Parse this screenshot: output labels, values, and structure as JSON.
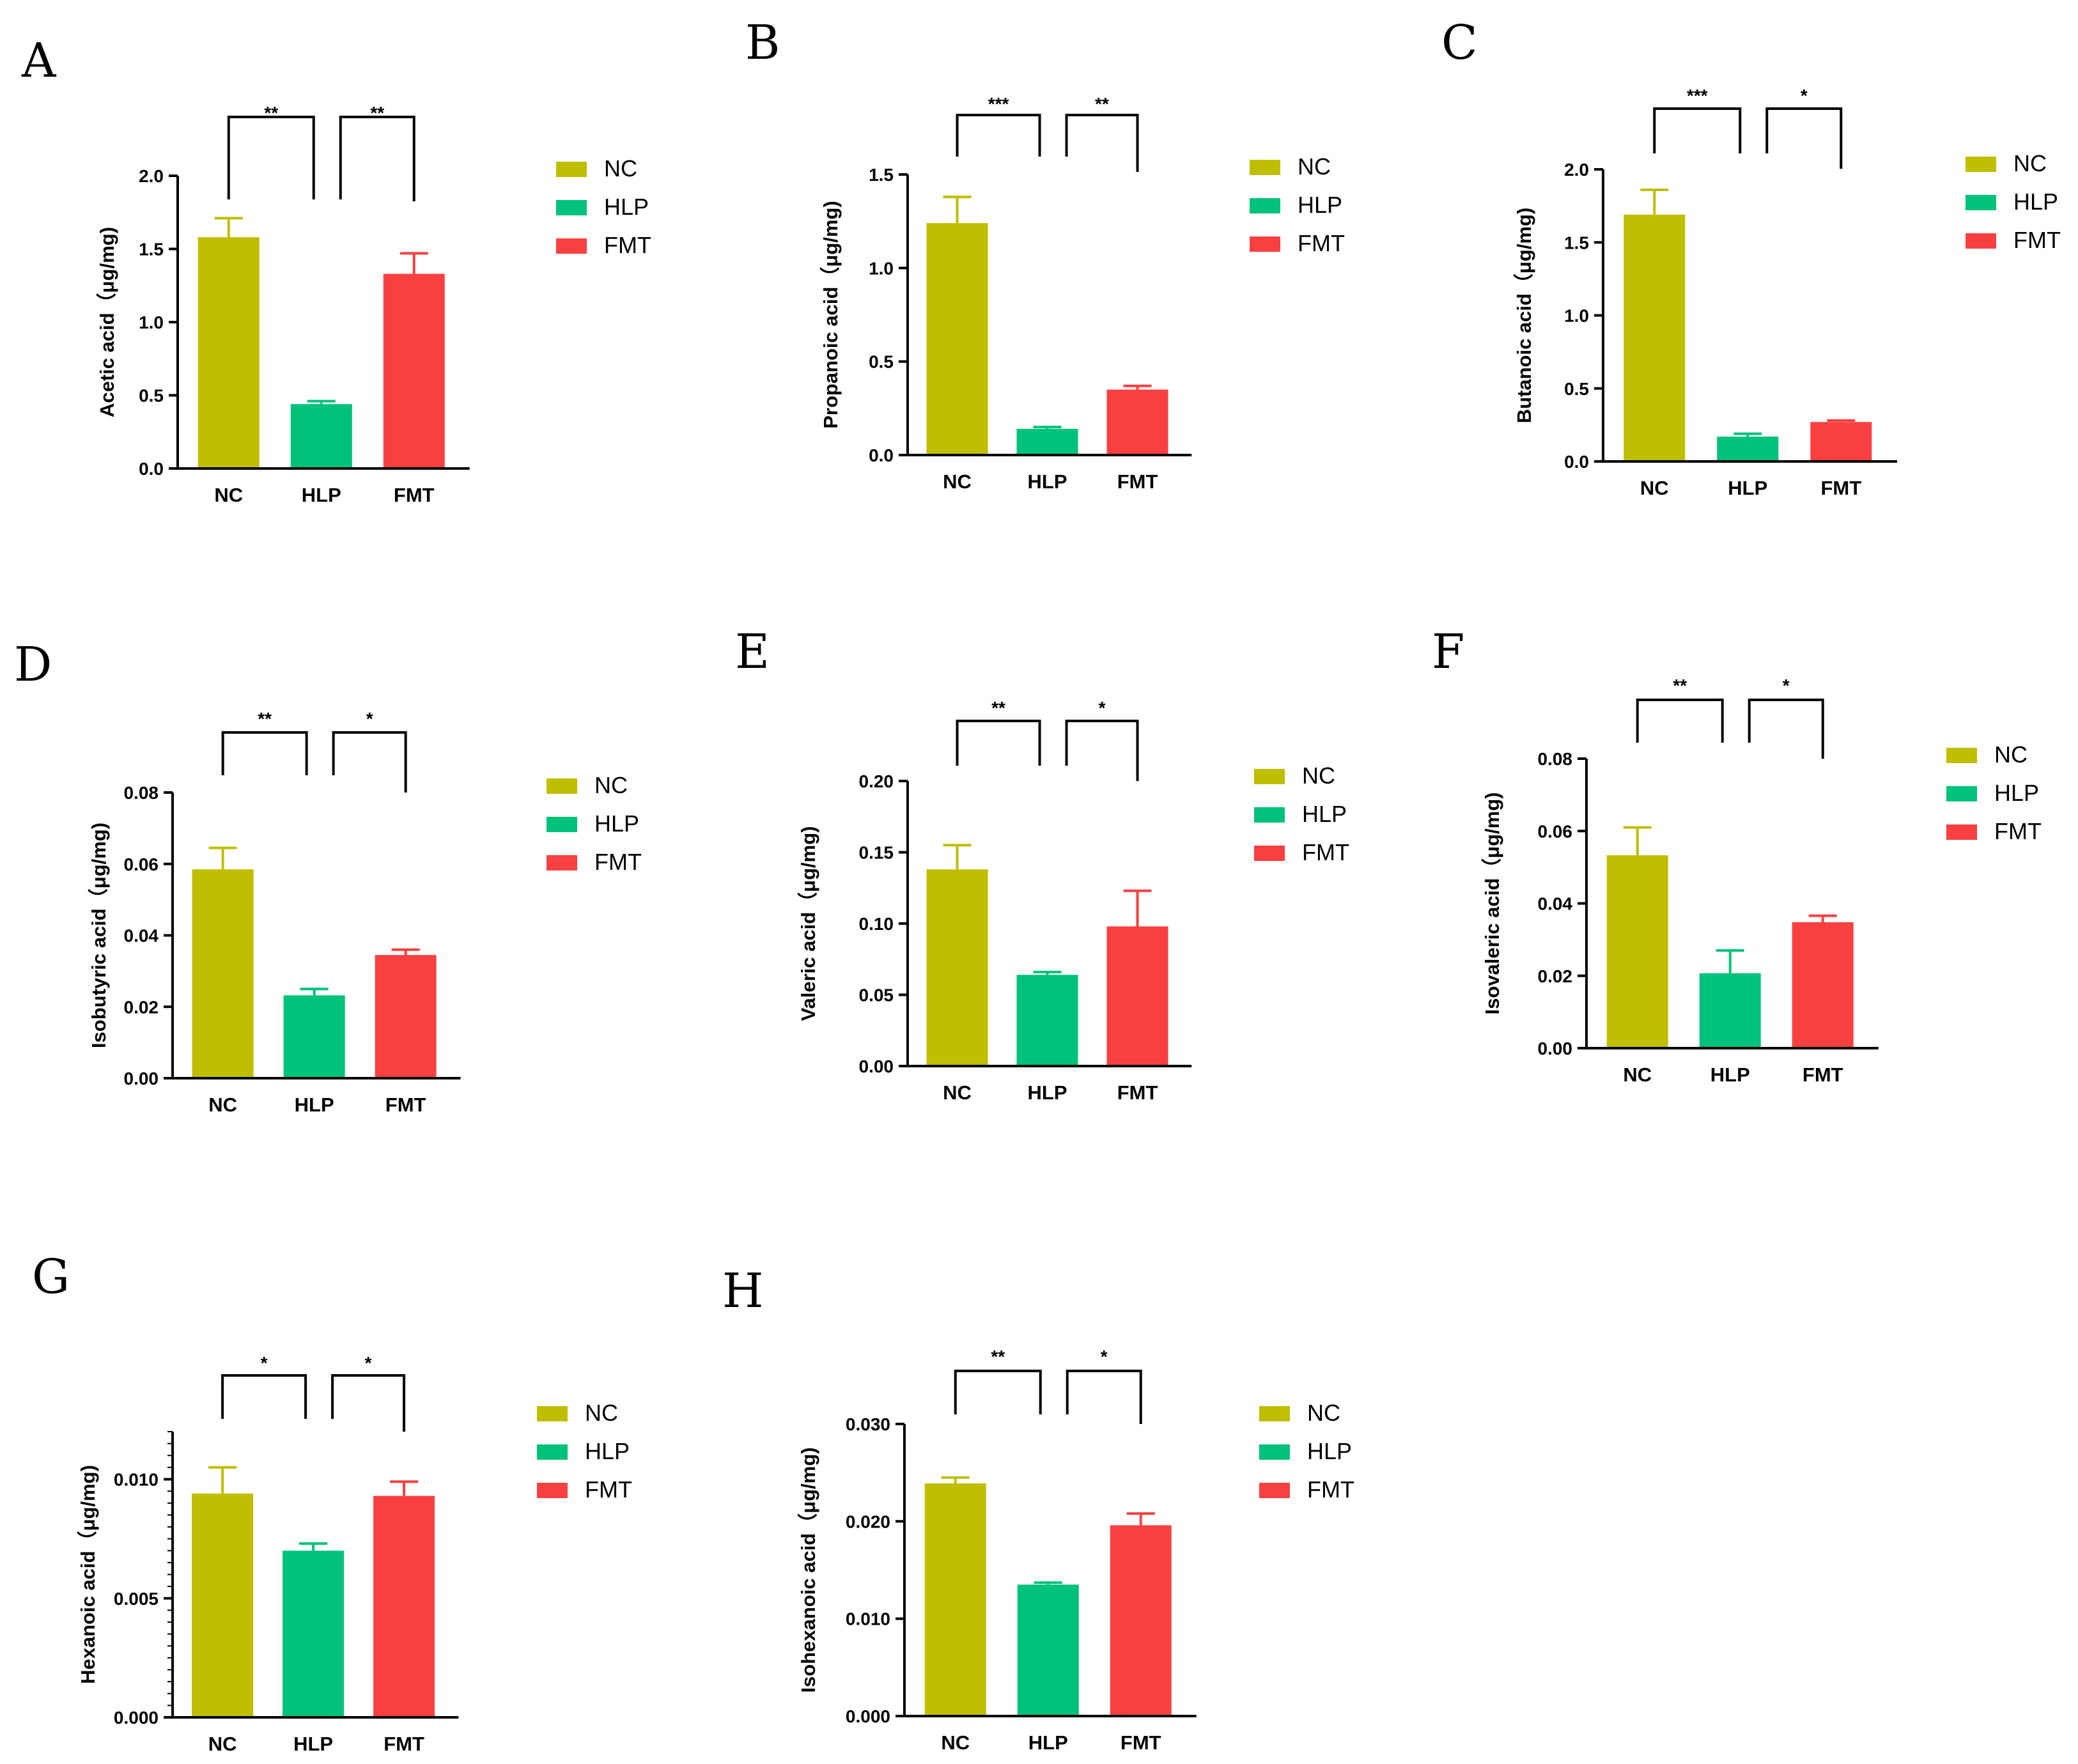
{
  "colors": {
    "NC": "#bfbe00",
    "HLP": "#00c27a",
    "FMT": "#f84040"
  },
  "legend": [
    "NC",
    "HLP",
    "FMT"
  ],
  "chart_data": [
    {
      "panel": "A",
      "type": "bar",
      "ylabel": "Acetic acid（μg/mg)",
      "categories": [
        "NC",
        "HLP",
        "FMT"
      ],
      "values": [
        1.58,
        0.44,
        1.33
      ],
      "errors": [
        0.13,
        0.02,
        0.14
      ],
      "ylim": [
        0,
        2.0
      ],
      "yticks": [
        0,
        0.5,
        1.0,
        1.5,
        2.0
      ],
      "yticklabels": [
        "0.0",
        "0.5",
        "1.0",
        "1.5",
        "2.0"
      ],
      "significance": [
        "**",
        "**"
      ]
    },
    {
      "panel": "B",
      "type": "bar",
      "ylabel": "Propanoic acid（μg/mg)",
      "categories": [
        "NC",
        "HLP",
        "FMT"
      ],
      "values": [
        1.24,
        0.14,
        0.35
      ],
      "errors": [
        0.14,
        0.01,
        0.02
      ],
      "ylim": [
        0,
        1.5
      ],
      "yticks": [
        0,
        0.5,
        1.0,
        1.5
      ],
      "yticklabels": [
        "0.0",
        "0.5",
        "1.0",
        "1.5"
      ],
      "significance": [
        "***",
        "**"
      ]
    },
    {
      "panel": "C",
      "type": "bar",
      "ylabel": "Butanoic acid（μg/mg)",
      "categories": [
        "NC",
        "HLP",
        "FMT"
      ],
      "values": [
        1.69,
        0.17,
        0.27
      ],
      "errors": [
        0.17,
        0.02,
        0.01
      ],
      "ylim": [
        0,
        2.0
      ],
      "yticks": [
        0,
        0.5,
        1.0,
        1.5,
        2.0
      ],
      "yticklabels": [
        "0.0",
        "0.5",
        "1.0",
        "1.5",
        "2.0"
      ],
      "significance": [
        "***",
        "*"
      ]
    },
    {
      "panel": "D",
      "type": "bar",
      "ylabel": "Isobutyric acid（μg/mg)",
      "categories": [
        "NC",
        "HLP",
        "FMT"
      ],
      "values": [
        0.0585,
        0.0232,
        0.0345
      ],
      "errors": [
        0.006,
        0.0018,
        0.0015
      ],
      "ylim": [
        0,
        0.08
      ],
      "yticks": [
        0,
        0.02,
        0.04,
        0.06,
        0.08
      ],
      "yticklabels": [
        "0.00",
        "0.02",
        "0.04",
        "0.06",
        "0.08"
      ],
      "significance": [
        "**",
        "*"
      ]
    },
    {
      "panel": "E",
      "type": "bar",
      "ylabel": "Valeric acid（μg/mg)",
      "categories": [
        "NC",
        "HLP",
        "FMT"
      ],
      "values": [
        0.138,
        0.064,
        0.098
      ],
      "errors": [
        0.017,
        0.002,
        0.025
      ],
      "ylim": [
        0,
        0.2
      ],
      "yticks": [
        0,
        0.05,
        0.1,
        0.15,
        0.2
      ],
      "yticklabels": [
        "0.00",
        "0.05",
        "0.10",
        "0.15",
        "0.20"
      ],
      "significance": [
        "**",
        "*"
      ]
    },
    {
      "panel": "F",
      "type": "bar",
      "ylabel": "Isovaleric acid（μg/mg)",
      "categories": [
        "NC",
        "HLP",
        "FMT"
      ],
      "values": [
        0.0533,
        0.0207,
        0.0348
      ],
      "errors": [
        0.0077,
        0.0063,
        0.0018
      ],
      "ylim": [
        0,
        0.08
      ],
      "yticks": [
        0,
        0.02,
        0.04,
        0.06,
        0.08
      ],
      "yticklabels": [
        "0.00",
        "0.02",
        "0.04",
        "0.06",
        "0.08"
      ],
      "significance": [
        "**",
        "*"
      ]
    },
    {
      "panel": "G",
      "type": "bar",
      "ylabel": "Hexanoic acid（μg/mg)",
      "categories": [
        "NC",
        "HLP",
        "FMT"
      ],
      "values": [
        0.0094,
        0.007,
        0.0093
      ],
      "errors": [
        0.0011,
        0.0003,
        0.0006
      ],
      "ylim": [
        0,
        0.012
      ],
      "yticks": [
        0,
        0.005,
        0.01
      ],
      "yticklabels": [
        "0.000",
        "0.005",
        "0.010"
      ],
      "minor_ticks": true,
      "significance": [
        "*",
        "*"
      ]
    },
    {
      "panel": "H",
      "type": "bar",
      "ylabel": "Isohexanoic acid（μg/mg)",
      "categories": [
        "NC",
        "HLP",
        "FMT"
      ],
      "values": [
        0.0239,
        0.0135,
        0.0196
      ],
      "errors": [
        0.0006,
        0.0002,
        0.0012
      ],
      "ylim": [
        0,
        0.03
      ],
      "yticks": [
        0,
        0.01,
        0.02,
        0.03
      ],
      "yticklabels": [
        "0.000",
        "0.010",
        "0.020",
        "0.030"
      ],
      "significance": [
        "**",
        "*"
      ]
    }
  ]
}
